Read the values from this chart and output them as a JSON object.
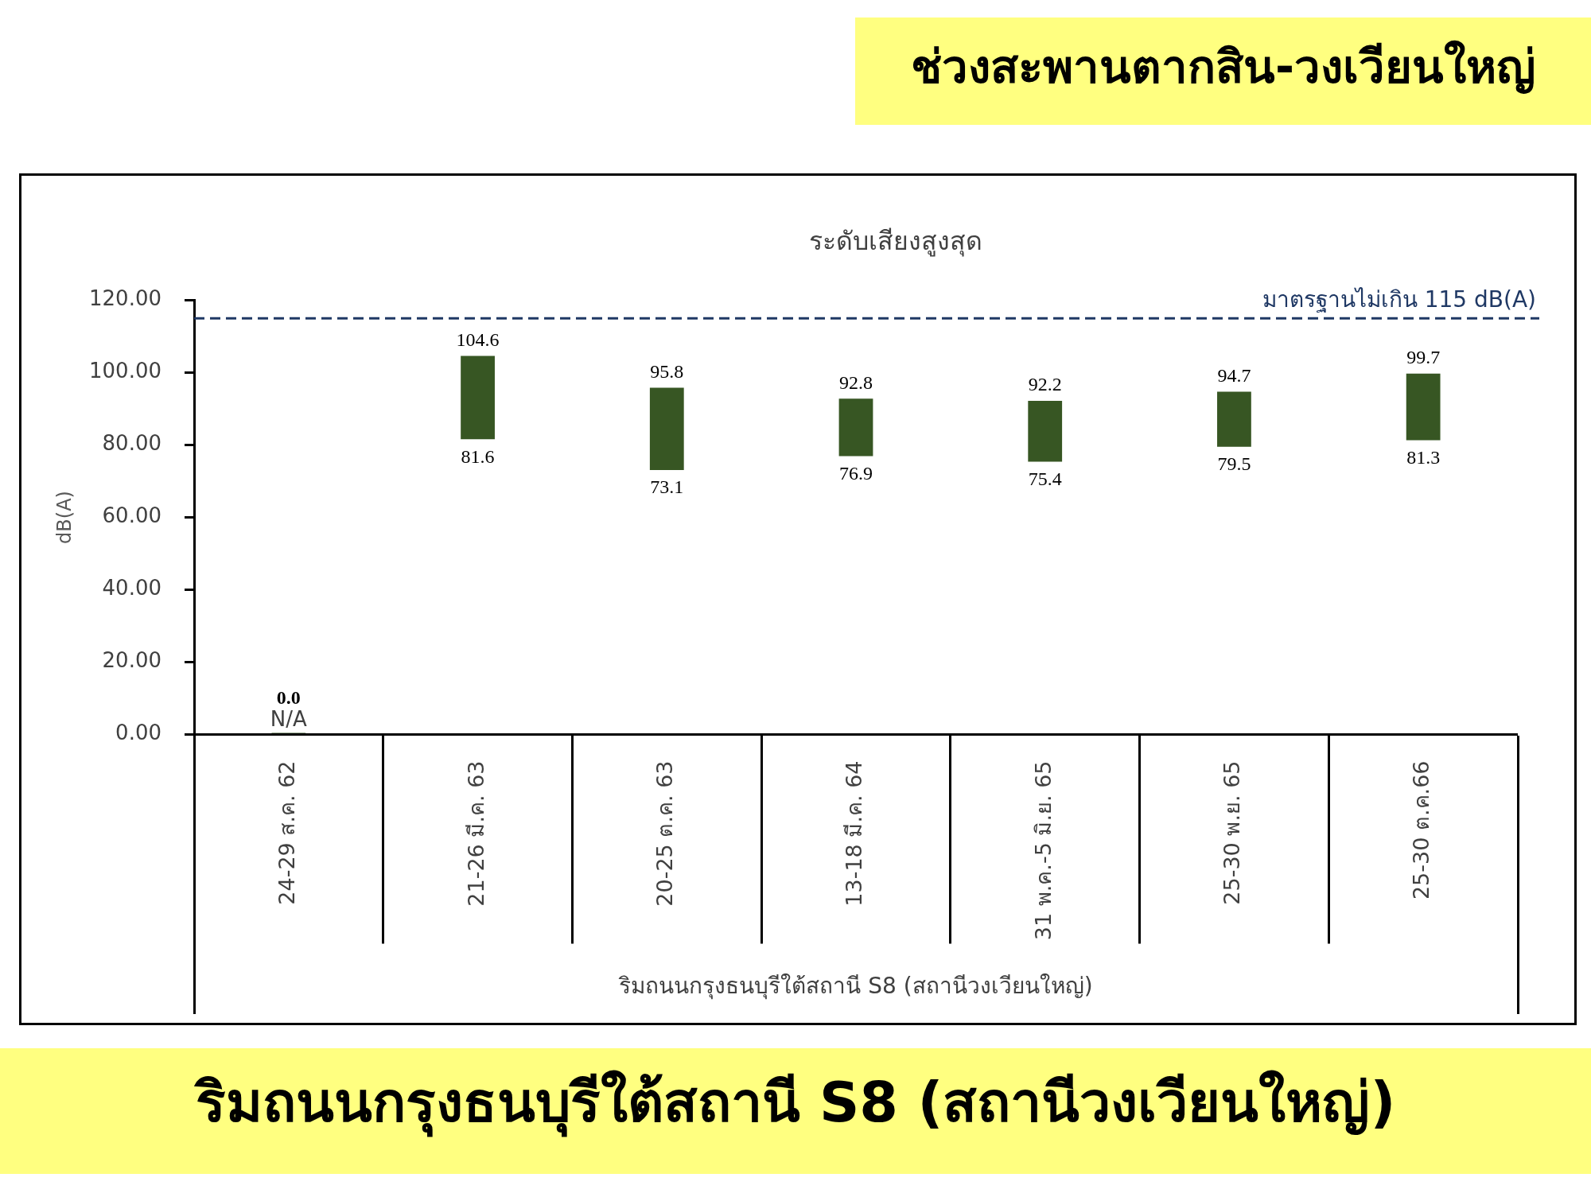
{
  "chart_data": {
    "type": "bar",
    "title": "ช่วงสะพานตากสิน-วงเวียนใหญ่",
    "subtitle": "ระดับเสียงสูงสุด",
    "xlabel": "ริมถนนกรุงธนบุรีใต้สถานี S8 (สถานีวงเวียนใหญ่)",
    "ylabel": "dB(A)",
    "categories": [
      "24-29 ส.ค. 62",
      "21-26 มี.ค. 63",
      "20-25 ต.ค. 63",
      "13-18 มี.ค. 64",
      "31 พ.ค.-5 มิ.ย. 65",
      "25-30 พ.ย. 65",
      "25-30 ต.ค.66"
    ],
    "base": [
      null,
      81.6,
      73.1,
      76.9,
      75.4,
      79.5,
      81.3
    ],
    "values": [
      0,
      23,
      22.7,
      15.9,
      16.8,
      15.2,
      18.4
    ],
    "color": "#375623",
    "value_labels": [
      "0.0\nN/A",
      "104.6",
      "95.8",
      "92.8",
      "92.2",
      "94.7",
      "99.7"
    ],
    "ylim": [
      0,
      120
    ],
    "yticks": [
      {
        "value": 0,
        "label": "0.00"
      },
      {
        "value": 20,
        "label": "20.00"
      },
      {
        "value": 40,
        "label": "40.00"
      },
      {
        "value": 60,
        "label": "60.00"
      },
      {
        "value": 80,
        "label": "80.00"
      },
      {
        "value": 100,
        "label": "100.00"
      },
      {
        "value": 120,
        "label": "120.00"
      }
    ],
    "ref_lines": [
      {
        "axis": "y",
        "value": 115,
        "label": "มาตรฐานไม่เกิน 115 dB(A)",
        "color": "#1f3864",
        "line_style": "dashed"
      }
    ],
    "annotations": [
      {
        "text": "81.6",
        "x": "21-26 มี.ค. 63",
        "y": 81.6
      },
      {
        "text": "73.1",
        "x": "20-25 ต.ค. 63",
        "y": 73.1
      },
      {
        "text": "76.9",
        "x": "13-18 มี.ค. 64",
        "y": 76.9
      },
      {
        "text": "75.4",
        "x": "31 พ.ค.-5 มิ.ย. 65",
        "y": 75.4
      },
      {
        "text": "79.5",
        "x": "25-30 พ.ย. 65",
        "y": 79.5
      },
      {
        "text": "81.3",
        "x": "25-30 ต.ค.66",
        "y": 81.3
      },
      "ริมถนนกรุงธนบุรีใต้สถานี S8 (สถานีวงเวียนใหญ่)"
    ]
  }
}
